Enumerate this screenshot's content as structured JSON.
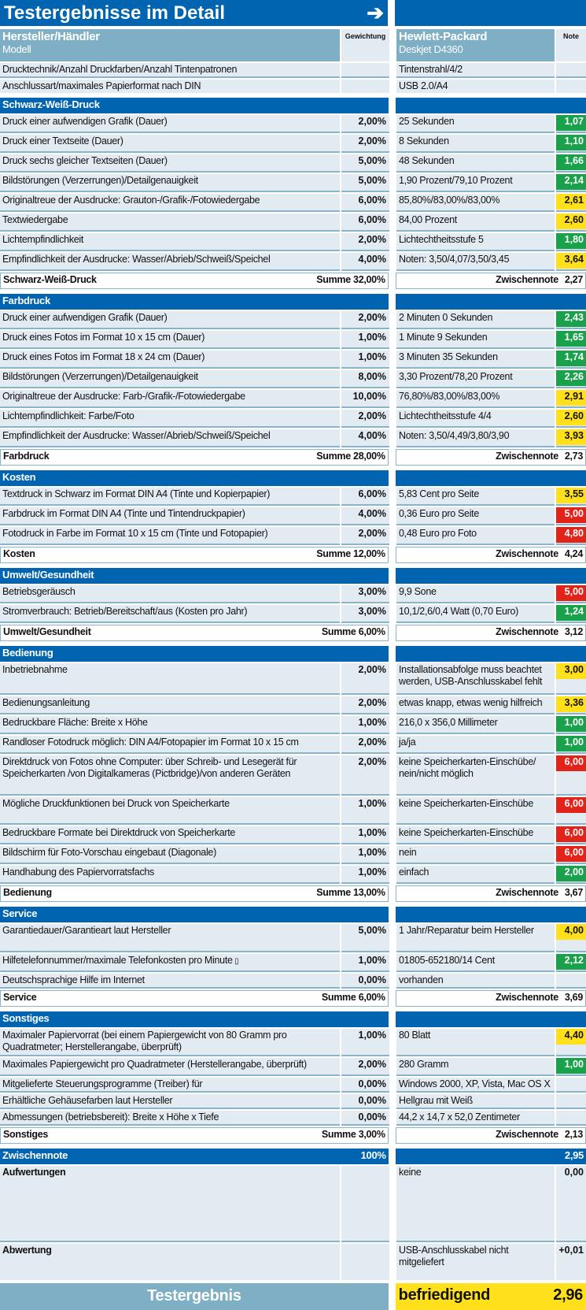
{
  "title": "Testergebnisse im Detail",
  "arrow_icon": "arrow-right-icon",
  "header": {
    "manufacturer_label": "Hersteller/Händler",
    "model_label": "Modell",
    "weight_label": "Gewichtung",
    "manufacturer": "Hewlett-Packard",
    "model": "Deskjet D4360",
    "note_label": "Note"
  },
  "colors": {
    "g": "#1aa14c",
    "y": "#ffe01a",
    "r": "#e2231a",
    "blue": "#0064b0"
  },
  "intro_rows": [
    {
      "label": "Drucktechnik/Anzahl Druckfarben/Anzahl Tintenpatronen",
      "weight": "",
      "value": "Tintenstrahl/4/2",
      "note": "",
      "c": ""
    },
    {
      "label": "Anschlussart/maximales Papierformat nach DIN",
      "weight": "",
      "value": "USB 2.0/A4",
      "note": "",
      "c": ""
    }
  ],
  "sections": [
    {
      "title": "Schwarz-Weiß-Druck",
      "sum_label": "Summe",
      "sum": "32,00%",
      "sub_label": "Zwischennote",
      "sub": "2,27",
      "rows": [
        {
          "label": "Druck einer aufwendigen Grafik (Dauer)",
          "weight": "2,00%",
          "value": "25 Sekunden",
          "note": "1,07",
          "c": "g"
        },
        {
          "label": "Druck einer Textseite (Dauer)",
          "weight": "2,00%",
          "value": "8 Sekunden",
          "note": "1,10",
          "c": "g"
        },
        {
          "label": "Druck sechs gleicher Textseiten (Dauer)",
          "weight": "5,00%",
          "value": "48 Sekunden",
          "note": "1,66",
          "c": "g"
        },
        {
          "label": "Bildstörungen (Verzerrungen)/Detailgenauigkeit",
          "weight": "5,00%",
          "value": "1,90 Prozent/79,10 Prozent",
          "note": "2,14",
          "c": "g"
        },
        {
          "label": "Originaltreue der Ausdrucke: Grauton-/Grafik-/Fotowiedergabe",
          "weight": "6,00%",
          "value": "85,80%/83,00%/83,00%",
          "note": "2,61",
          "c": "y"
        },
        {
          "label": "Textwiedergabe",
          "weight": "6,00%",
          "value": "84,00 Prozent",
          "note": "2,60",
          "c": "y"
        },
        {
          "label": "Lichtempfindlichkeit",
          "weight": "2,00%",
          "value": "Lichtechtheitsstufe 5",
          "note": "1,80",
          "c": "g"
        },
        {
          "label": "Empfindlichkeit der Ausdrucke: Wasser/Abrieb/Schweiß/Speichel",
          "weight": "4,00%",
          "value": "Noten: 3,50/4,07/3,50/3,45",
          "note": "3,64",
          "c": "y"
        }
      ]
    },
    {
      "title": "Farbdruck",
      "sum_label": "Summe",
      "sum": "28,00%",
      "sub_label": "Zwischennote",
      "sub": "2,73",
      "rows": [
        {
          "label": "Druck einer aufwendigen Grafik (Dauer)",
          "weight": "2,00%",
          "value": "2 Minuten 0 Sekunden",
          "note": "2,43",
          "c": "g"
        },
        {
          "label": "Druck eines Fotos im Format 10 x 15 cm (Dauer)",
          "weight": "1,00%",
          "value": "1 Minute 9 Sekunden",
          "note": "1,65",
          "c": "g"
        },
        {
          "label": "Druck eines Fotos im Format 18 x 24 cm (Dauer)",
          "weight": "1,00%",
          "value": "3 Minuten 35 Sekunden",
          "note": "1,74",
          "c": "g"
        },
        {
          "label": "Bildstörungen (Verzerrungen)/Detailgenauigkeit",
          "weight": "8,00%",
          "value": "3,30 Prozent/78,20 Prozent",
          "note": "2,26",
          "c": "g"
        },
        {
          "label": "Originaltreue der Ausdrucke: Farb-/Grafik-/Fotowiedergabe",
          "weight": "10,00%",
          "value": "76,80%/83,00%/83,00%",
          "note": "2,91",
          "c": "y"
        },
        {
          "label": "Lichtempfindlichkeit: Farbe/Foto",
          "weight": "2,00%",
          "value": "Lichtechtheitsstufe 4/4",
          "note": "2,60",
          "c": "y"
        },
        {
          "label": "Empfindlichkeit der Ausdrucke: Wasser/Abrieb/Schweiß/Speichel",
          "weight": "4,00%",
          "value": "Noten: 3,50/4,49/3,80/3,90",
          "note": "3,93",
          "c": "y"
        }
      ]
    },
    {
      "title": "Kosten",
      "sum_label": "Summe",
      "sum": "12,00%",
      "sub_label": "Zwischennote",
      "sub": "4,24",
      "rows": [
        {
          "label": "Textdruck in Schwarz im Format DIN A4 (Tinte und Kopierpapier)",
          "weight": "6,00%",
          "value": "5,83 Cent pro Seite",
          "note": "3,55",
          "c": "y"
        },
        {
          "label": "Farbdruck im Format DIN A4 (Tinte und Tintendruckpapier)",
          "weight": "4,00%",
          "value": "0,36 Euro pro Seite",
          "note": "5,00",
          "c": "r"
        },
        {
          "label": "Fotodruck in Farbe im Format 10 x 15 cm (Tinte und Fotopapier)",
          "weight": "2,00%",
          "value": "0,48 Euro pro Foto",
          "note": "4,80",
          "c": "r"
        }
      ]
    },
    {
      "title": "Umwelt/Gesundheit",
      "sum_label": "Summe",
      "sum": "6,00%",
      "sub_label": "Zwischennote",
      "sub": "3,12",
      "rows": [
        {
          "label": "Betriebsgeräusch",
          "weight": "3,00%",
          "value": "9,9 Sone",
          "note": "5,00",
          "c": "r"
        },
        {
          "label": "Stromverbrauch: Betrieb/Bereitschaft/aus (Kosten pro Jahr)",
          "weight": "3,00%",
          "value": "10,1/2,6/0,4 Watt (0,70 Euro)",
          "note": "1,24",
          "c": "g"
        }
      ]
    },
    {
      "title": "Bedienung",
      "sum_label": "Summe",
      "sum": "13,00%",
      "sub_label": "Zwischennote",
      "sub": "3,67",
      "rows": [
        {
          "label": "Inbetriebnahme",
          "weight": "2,00%",
          "value": "Installationsabfolge muss beachtet\nwerden, USB-Anschlusskabel fehlt",
          "note": "3,00",
          "c": "y"
        },
        {
          "label": "Bedienungsanleitung",
          "weight": "2,00%",
          "value": "etwas knapp, etwas wenig hilfreich",
          "note": "3,36",
          "c": "y"
        },
        {
          "label": "Bedruckbare Fläche: Breite x Höhe",
          "weight": "1,00%",
          "value": "216,0 x 356,0 Millimeter",
          "note": "1,00",
          "c": "g"
        },
        {
          "label": "Randloser Fotodruck möglich: DIN A4/Fotopapier im Format 10 x 15 cm",
          "weight": "2,00%",
          "value": "ja/ja",
          "note": "1,00",
          "c": "g"
        },
        {
          "label": "Direktdruck von Fotos ohne Computer: über Schreib- und Lesegerät für\nSpeicherkarten  /von Digitalkameras (Pictbridge)/von anderen Geräten",
          "weight": "2,00%",
          "value": "keine Speicherkarten-Einschübe/\nnein/nicht möglich",
          "note": "6,00",
          "c": "r"
        },
        {
          "label": "Mögliche Druckfunktionen bei Druck von Speicherkarte",
          "weight": "1,00%",
          "value": "keine Speicherkarten-Einschübe",
          "note": "6,00",
          "c": "r"
        },
        {
          "label": "Bedruckbare Formate bei Direktdruck von Speicherkarte",
          "weight": "1,00%",
          "value": "keine Speicherkarten-Einschübe",
          "note": "6,00",
          "c": "r"
        },
        {
          "label": "Bildschirm für Foto-Vorschau eingebaut (Diagonale)",
          "weight": "1,00%",
          "value": "nein",
          "note": "6,00",
          "c": "r"
        },
        {
          "label": "Handhabung des Papiervorratsfachs",
          "weight": "1,00%",
          "value": "einfach",
          "note": "2,00",
          "c": "g"
        }
      ]
    },
    {
      "title": "Service",
      "sum_label": "Summe",
      "sum": "6,00%",
      "sub_label": "Zwischennote",
      "sub": "3,69",
      "rows": [
        {
          "label": "Garantiedauer/Garantieart laut Hersteller",
          "weight": "5,00%",
          "value": "1 Jahr/Reparatur beim Hersteller",
          "note": "4,00",
          "c": "y"
        },
        {
          "label": "Hilfetelefonnummer/maximale Telefonkosten pro Minute",
          "icon": "mobile-phone-icon",
          "weight": "1,00%",
          "value": "01805-652180/14 Cent",
          "note": "2,12",
          "c": "g"
        },
        {
          "label": "Deutschsprachige Hilfe im Internet",
          "weight": "0,00%",
          "value": "vorhanden",
          "note": "",
          "c": ""
        }
      ]
    },
    {
      "title": "Sonstiges",
      "sum_label": "Summe",
      "sum": "3,00%",
      "sub_label": "Zwischennote",
      "sub": "2,13",
      "rows": [
        {
          "label": "Maximaler Papiervorrat (bei einem Papiergewicht von 80 Gramm pro\nQuadratmeter; Herstellerangabe, überprüft)",
          "weight": "1,00%",
          "value": "80 Blatt",
          "note": "4,40",
          "c": "y"
        },
        {
          "label": "Maximales Papiergewicht pro Quadratmeter (Herstellerangabe, überprüft)",
          "weight": "2,00%",
          "value": "280 Gramm",
          "note": "1,00",
          "c": "g"
        },
        {
          "label": "Mitgelieferte Steuerungsprogramme (Treiber) für",
          "weight": "0,00%",
          "value": "Windows 2000, XP, Vista, Mac OS X",
          "note": "",
          "c": ""
        },
        {
          "label": "Erhältliche Gehäusefarben laut Hersteller",
          "weight": "0,00%",
          "value": "Hellgrau mit Weiß",
          "note": "",
          "c": ""
        },
        {
          "label": "Abmessungen (betriebsbereit): Breite x Höhe x Tiefe",
          "weight": "0,00%",
          "value": "44,2 x 14,7 x 52,0 Zentimeter",
          "note": "",
          "c": ""
        }
      ]
    }
  ],
  "zwischennote": {
    "label": "Zwischennote",
    "weight": "100%",
    "note": "2,95"
  },
  "aufwertungen": {
    "label": "Aufwertungen",
    "value": "keine",
    "note": "0,00"
  },
  "abwertung": {
    "label": "Abwertung",
    "value": "USB-Anschlusskabel nicht\nmitgeliefert",
    "note": "+0,01"
  },
  "result": {
    "label": "Testergebnis",
    "rating": "befriedigend",
    "note": "2,96"
  }
}
